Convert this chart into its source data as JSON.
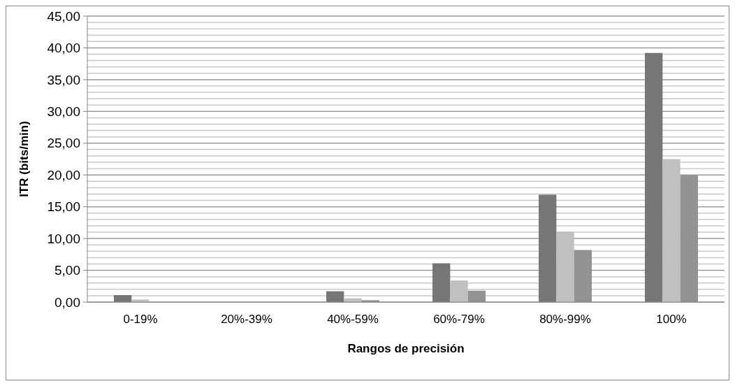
{
  "chart_data": {
    "type": "bar",
    "xlabel": "Rangos de precisión",
    "ylabel": "ITR (bits/min)",
    "categories": [
      "0-19%",
      "20%-39%",
      "40%-59%",
      "60%-79%",
      "80%-99%",
      "100%"
    ],
    "series": [
      {
        "color": "#767676",
        "values": [
          1.1,
          0,
          1.7,
          6.1,
          16.9,
          39.2
        ]
      },
      {
        "color": "#c0c0c0",
        "values": [
          0.4,
          0,
          0.6,
          3.4,
          11.1,
          22.5
        ]
      },
      {
        "color": "#939393",
        "values": [
          0,
          0,
          0.3,
          1.8,
          8.2,
          20.0
        ]
      }
    ],
    "ylim": [
      0,
      45
    ],
    "yticks": [
      {
        "value": 0,
        "label": "0,00"
      },
      {
        "value": 1,
        "label": null
      },
      {
        "value": 2,
        "label": null
      },
      {
        "value": 3,
        "label": null
      },
      {
        "value": 4,
        "label": null
      },
      {
        "value": 5,
        "label": "5,00"
      },
      {
        "value": 6,
        "label": null
      },
      {
        "value": 7,
        "label": null
      },
      {
        "value": 8,
        "label": null
      },
      {
        "value": 9,
        "label": null
      },
      {
        "value": 10,
        "label": "10,00"
      },
      {
        "value": 11,
        "label": null
      },
      {
        "value": 12,
        "label": null
      },
      {
        "value": 13,
        "label": null
      },
      {
        "value": 14,
        "label": null
      },
      {
        "value": 15,
        "label": "15,00"
      },
      {
        "value": 16,
        "label": null
      },
      {
        "value": 17,
        "label": null
      },
      {
        "value": 18,
        "label": null
      },
      {
        "value": 19,
        "label": null
      },
      {
        "value": 20,
        "label": "20,00"
      },
      {
        "value": 21,
        "label": null
      },
      {
        "value": 22,
        "label": null
      },
      {
        "value": 23,
        "label": null
      },
      {
        "value": 24,
        "label": null
      },
      {
        "value": 25,
        "label": "25,00"
      },
      {
        "value": 26,
        "label": null
      },
      {
        "value": 27,
        "label": null
      },
      {
        "value": 28,
        "label": null
      },
      {
        "value": 29,
        "label": null
      },
      {
        "value": 30,
        "label": "30,00"
      },
      {
        "value": 31,
        "label": null
      },
      {
        "value": 32,
        "label": null
      },
      {
        "value": 33,
        "label": null
      },
      {
        "value": 34,
        "label": null
      },
      {
        "value": 35,
        "label": "35,00"
      },
      {
        "value": 36,
        "label": null
      },
      {
        "value": 37,
        "label": null
      },
      {
        "value": 38,
        "label": null
      },
      {
        "value": 39,
        "label": null
      },
      {
        "value": 40,
        "label": "40,00"
      },
      {
        "value": 41,
        "label": null
      },
      {
        "value": 42,
        "label": null
      },
      {
        "value": 43,
        "label": null
      },
      {
        "value": 44,
        "label": null
      },
      {
        "value": 45,
        "label": "45,00"
      }
    ],
    "grid": true
  }
}
